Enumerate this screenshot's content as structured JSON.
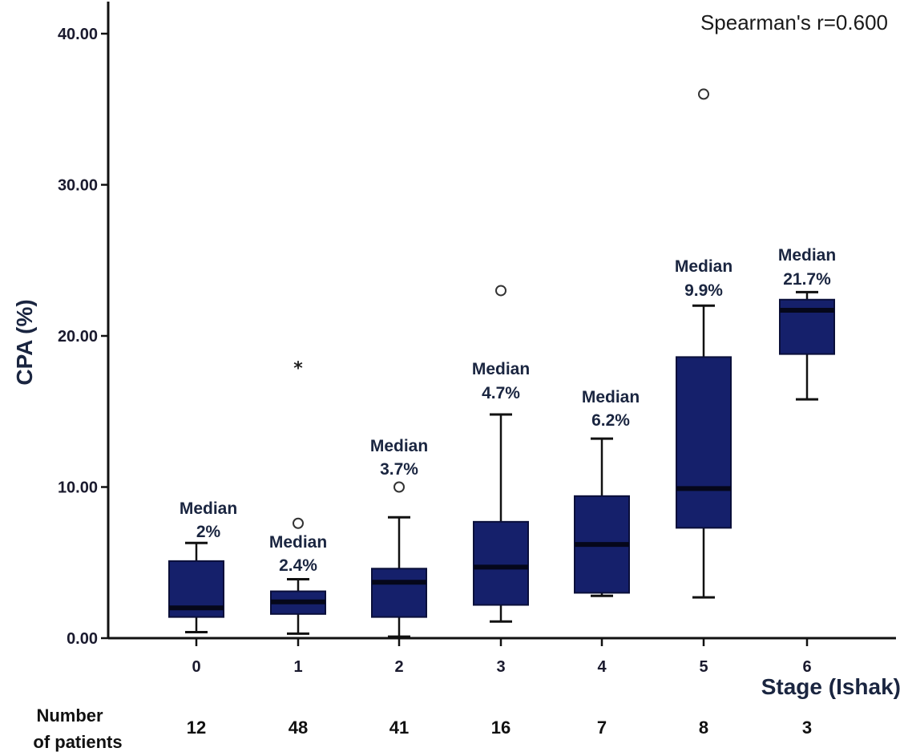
{
  "chart_data": {
    "type": "boxplot",
    "ylabel": "CPA (%)",
    "xlabel": "Stage (Ishak)",
    "ylim": [
      0,
      42
    ],
    "yticks": [
      "0.00",
      "10.00",
      "20.00",
      "30.00",
      "40.00"
    ],
    "ytick_values": [
      0,
      10,
      20,
      30,
      40
    ],
    "categories": [
      "0",
      "1",
      "2",
      "3",
      "4",
      "5",
      "6"
    ],
    "annotation": "Spearman's r=0.600",
    "counts_label_line1": "Number",
    "counts_label_line2": "of patients",
    "boxes": [
      {
        "stage": "0",
        "whisker_low": 0.4,
        "q1": 1.4,
        "median": 2.0,
        "q3": 5.1,
        "whisker_high": 6.3,
        "median_label_line1": "Median",
        "median_label_line2": "2%",
        "n": "12",
        "outliers": [],
        "extremes": []
      },
      {
        "stage": "1",
        "whisker_low": 0.3,
        "q1": 1.6,
        "median": 2.4,
        "q3": 3.1,
        "whisker_high": 3.9,
        "median_label_line1": "Median",
        "median_label_line2": "2.4%",
        "n": "48",
        "outliers": [
          7.6
        ],
        "extremes": [
          18.0
        ]
      },
      {
        "stage": "2",
        "whisker_low": 0.1,
        "q1": 1.4,
        "median": 3.7,
        "q3": 4.6,
        "whisker_high": 8.0,
        "median_label_line1": "Median",
        "median_label_line2": "3.7%",
        "n": "41",
        "outliers": [
          10.0
        ],
        "extremes": []
      },
      {
        "stage": "3",
        "whisker_low": 1.1,
        "q1": 2.2,
        "median": 4.7,
        "q3": 7.7,
        "whisker_high": 14.8,
        "median_label_line1": "Median",
        "median_label_line2": "4.7%",
        "n": "16",
        "outliers": [
          23.0
        ],
        "extremes": []
      },
      {
        "stage": "4",
        "whisker_low": 2.8,
        "q1": 3.0,
        "median": 6.2,
        "q3": 9.4,
        "whisker_high": 13.2,
        "median_label_line1": "Median",
        "median_label_line2": "6.2%",
        "n": "7",
        "outliers": [],
        "extremes": []
      },
      {
        "stage": "5",
        "whisker_low": 2.7,
        "q1": 7.3,
        "median": 9.9,
        "q3": 18.6,
        "whisker_high": 22.0,
        "median_label_line1": "Median",
        "median_label_line2": "9.9%",
        "n": "8",
        "outliers": [
          36.0
        ],
        "extremes": []
      },
      {
        "stage": "6",
        "whisker_low": 15.8,
        "q1": 18.8,
        "median": 21.7,
        "q3": 22.4,
        "whisker_high": 22.9,
        "median_label_line1": "Median",
        "median_label_line2": "21.7%",
        "n": "3",
        "outliers": [],
        "extremes": []
      }
    ],
    "colors": {
      "box_fill": "#15206b",
      "median_line": "#05071a",
      "axis": "#111111",
      "text": "#1a2540"
    }
  }
}
